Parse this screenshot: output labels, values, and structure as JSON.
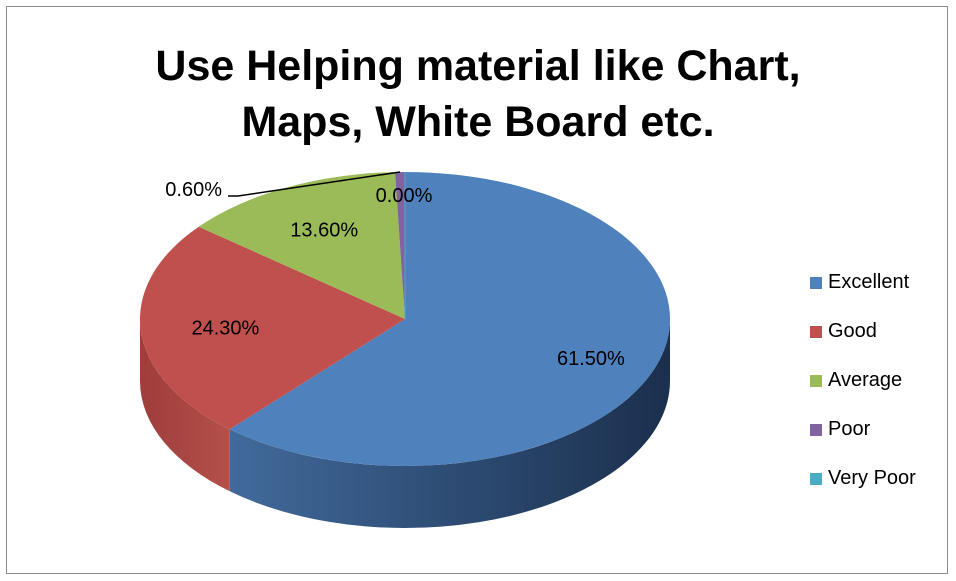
{
  "chart_data": {
    "type": "pie",
    "title_lines": [
      "Use Helping material like Chart,",
      "Maps, White Board etc."
    ],
    "legend_position": "right",
    "three_d": true,
    "slices": [
      {
        "label": "Excellent",
        "value": 61.5,
        "display": "61.50%",
        "color": "#4F81BD"
      },
      {
        "label": "Good",
        "value": 24.3,
        "display": "24.30%",
        "color": "#C0504D"
      },
      {
        "label": "Average",
        "value": 13.6,
        "display": "13.60%",
        "color": "#9BBB59"
      },
      {
        "label": "Poor",
        "value": 0.6,
        "display": "0.60%",
        "color": "#8064A2"
      },
      {
        "label": "Very Poor",
        "value": 0.0,
        "display": "0.00%",
        "color": "#4BACC6"
      }
    ]
  }
}
